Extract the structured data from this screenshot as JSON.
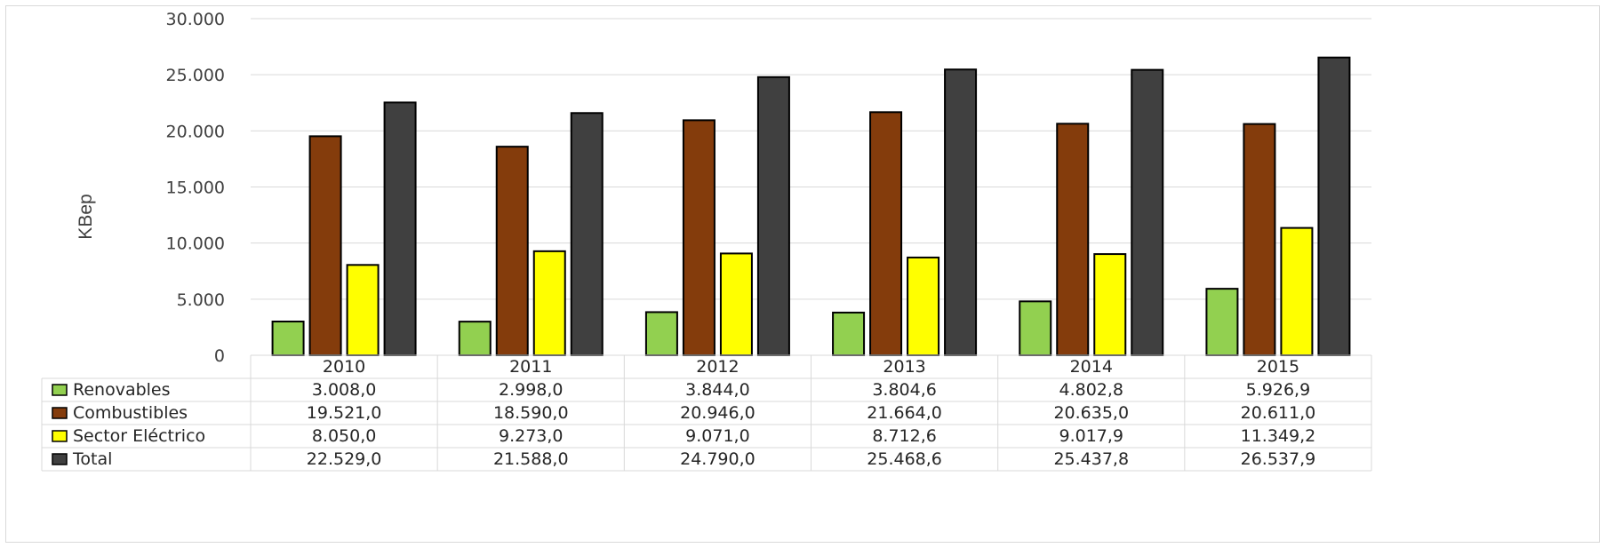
{
  "chart_data": {
    "type": "bar",
    "title": "",
    "xlabel": "",
    "ylabel": "KBep",
    "ylim": [
      0,
      30000
    ],
    "yticks": [
      0,
      5000,
      10000,
      15000,
      20000,
      25000,
      30000
    ],
    "ytick_labels": [
      "0",
      "5.000",
      "10.000",
      "15.000",
      "20.000",
      "25.000",
      "30.000"
    ],
    "grid": true,
    "legend": "data-table",
    "categories": [
      "2010",
      "2011",
      "2012",
      "2013",
      "2014",
      "2015"
    ],
    "series": [
      {
        "name": "Renovables",
        "color": "#92d050",
        "values": [
          3008.0,
          2998.0,
          3844.0,
          3804.6,
          4802.8,
          5926.9
        ],
        "labels": [
          "3.008,0",
          "2.998,0",
          "3.844,0",
          "3.804,6",
          "4.802,8",
          "5.926,9"
        ]
      },
      {
        "name": "Combustibles",
        "color": "#843c0c",
        "values": [
          19521.0,
          18590.0,
          20946.0,
          21664.0,
          20635.0,
          20611.0
        ],
        "labels": [
          "19.521,0",
          "18.590,0",
          "20.946,0",
          "21.664,0",
          "20.635,0",
          "20.611,0"
        ]
      },
      {
        "name": "Sector Eléctrico",
        "color": "#ffff00",
        "values": [
          8050.0,
          9273.0,
          9071.0,
          8712.6,
          9017.9,
          11349.2
        ],
        "labels": [
          "8.050,0",
          "9.273,0",
          "9.071,0",
          "8.712,6",
          "9.017,9",
          "11.349,2"
        ]
      },
      {
        "name": "Total",
        "color": "#404040",
        "values": [
          22529.0,
          21588.0,
          24790.0,
          25468.6,
          25437.8,
          26537.9
        ],
        "labels": [
          "22.529,0",
          "21.588,0",
          "24.790,0",
          "25.468,6",
          "25.437,8",
          "26.537,9"
        ]
      }
    ]
  }
}
